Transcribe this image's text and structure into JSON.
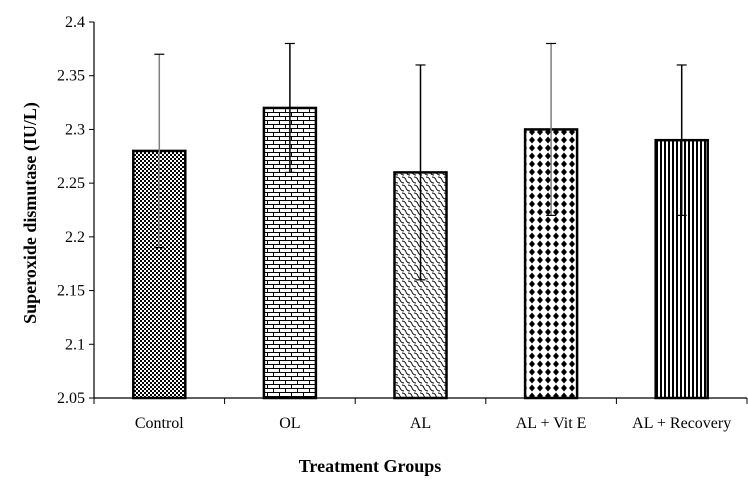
{
  "chart_data": {
    "type": "bar",
    "title": "",
    "xlabel": "Treatment Groups",
    "ylabel": "Superoxide dismutase (IU/L)",
    "ylim": [
      2.05,
      2.4
    ],
    "yticks": [
      "2.05",
      "2.1",
      "2.15",
      "2.2",
      "2.25",
      "2.3",
      "2.35",
      "2.4"
    ],
    "grid": false,
    "legend": "none",
    "categories": [
      "Control",
      "OL",
      "AL",
      "AL + Vit E",
      "AL + Recovery"
    ],
    "values": [
      2.28,
      2.32,
      2.26,
      2.3,
      2.29
    ],
    "error": [
      0.09,
      0.06,
      0.1,
      0.08,
      0.07
    ],
    "patterns": [
      "checker",
      "brick",
      "scales",
      "diamonds",
      "vertical-lines"
    ],
    "error_bar_colors": [
      "#808080",
      "#000000",
      "#000000",
      "#808080",
      "#000000"
    ]
  }
}
